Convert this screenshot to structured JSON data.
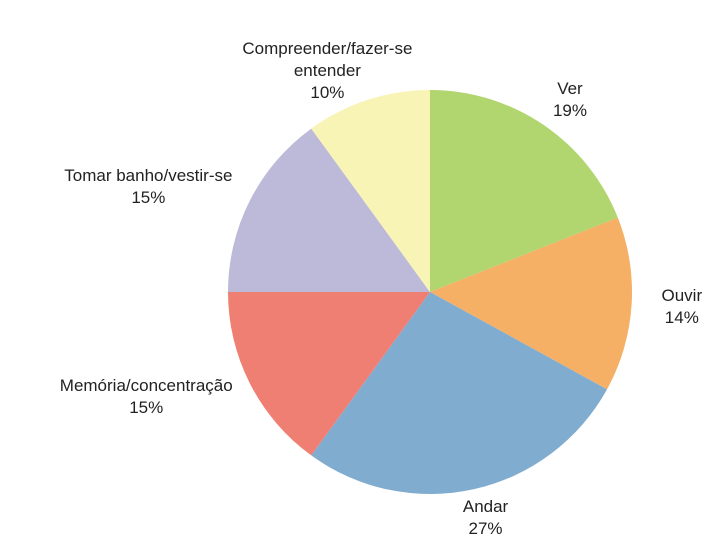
{
  "chart_data": {
    "type": "pie",
    "categories": [
      "Ver",
      "Ouvir",
      "Andar",
      "Memória/concentração",
      "Tomar banho/vestir-se",
      "Compreender/fazer-se entender"
    ],
    "values": [
      19,
      14,
      27,
      15,
      15,
      10
    ],
    "value_labels": [
      "19%",
      "14%",
      "27%",
      "15%",
      "15%",
      "10%"
    ],
    "colors": [
      "#b1d56f",
      "#f5b066",
      "#80acd0",
      "#f07f73",
      "#bcbad8",
      "#f8f4b6"
    ]
  }
}
